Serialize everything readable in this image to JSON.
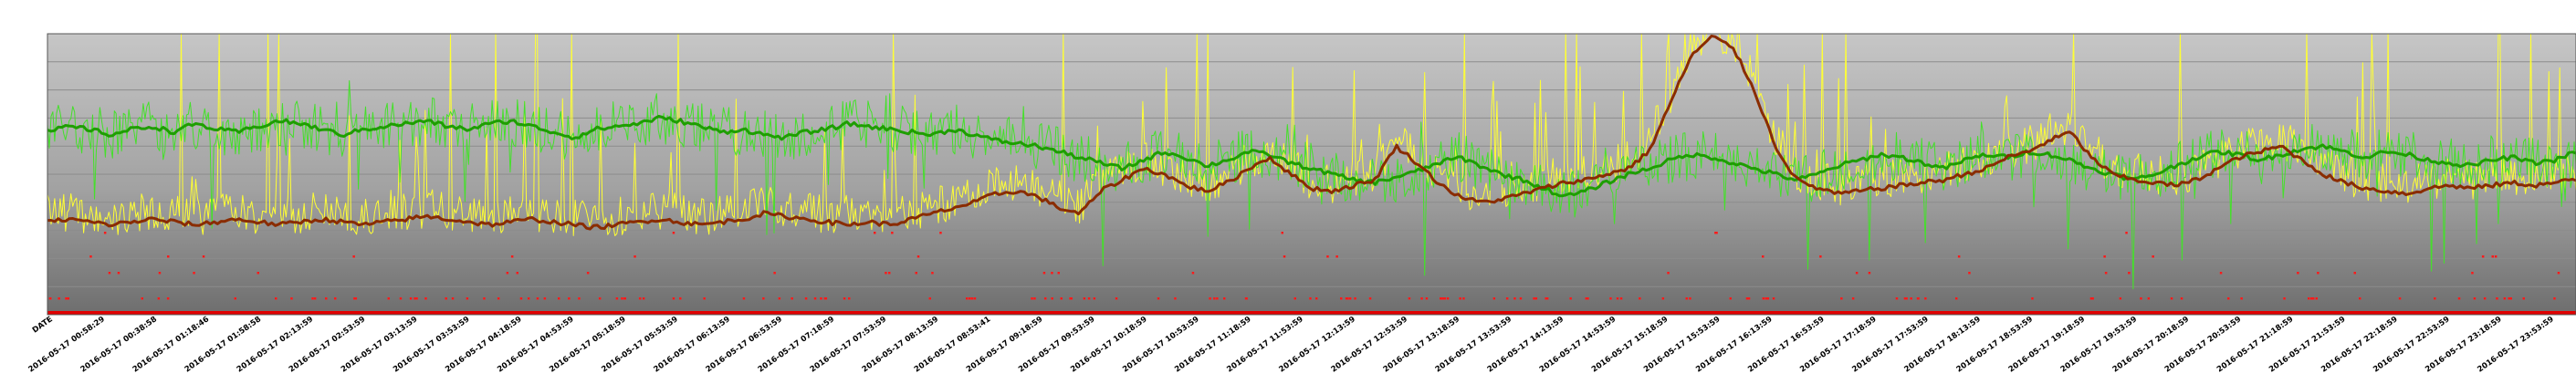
{
  "chart_data": {
    "type": "line",
    "title": "",
    "xlabel": "",
    "ylabel": "",
    "ylim": [
      0,
      100
    ],
    "grid": true,
    "legend": "none",
    "x_first_label": "DATE",
    "x_tick_labels": [
      "2016-05-17 00:58:29",
      "2016-05-17 00:38:58",
      "2016-05-17 01:18:46",
      "2016-05-17 01:58:58",
      "2016-05-17 02:13:59",
      "2016-05-17 02:53:59",
      "2016-05-17 03:13:59",
      "2016-05-17 03:53:59",
      "2016-05-17 04:18:59",
      "2016-05-17 04:53:59",
      "2016-05-17 05:18:59",
      "2016-05-17 05:53:59",
      "2016-05-17 06:13:59",
      "2016-05-17 06:53:59",
      "2016-05-17 07:18:59",
      "2016-05-17 07:53:59",
      "2016-05-17 08:13:59",
      "2016-05-17 08:53:41",
      "2016-05-17 09:18:59",
      "2016-05-17 09:53:59",
      "2016-05-17 10:18:59",
      "2016-05-17 10:53:59",
      "2016-05-17 11:18:59",
      "2016-05-17 11:53:59",
      "2016-05-17 12:13:59",
      "2016-05-17 12:53:59",
      "2016-05-17 13:18:59",
      "2016-05-17 13:53:59",
      "2016-05-17 14:13:59",
      "2016-05-17 14:53:59",
      "2016-05-17 15:18:59",
      "2016-05-17 15:53:59",
      "2016-05-17 16:13:59",
      "2016-05-17 16:53:59",
      "2016-05-17 17:18:59",
      "2016-05-17 17:53:59",
      "2016-05-17 18:13:59",
      "2016-05-17 18:53:59",
      "2016-05-17 19:18:59",
      "2016-05-17 19:53:59",
      "2016-05-17 20:18:59",
      "2016-05-17 20:53:59",
      "2016-05-17 21:18:59",
      "2016-05-17 21:53:59",
      "2016-05-17 22:18:59",
      "2016-05-17 22:53:59",
      "2016-05-17 23:18:59",
      "2016-05-17 23:53:59"
    ],
    "series": [
      {
        "color": "#1e9e00",
        "style": "smoothed line",
        "values": [
          65,
          67,
          66,
          64,
          66,
          67,
          65,
          68,
          66,
          65,
          67,
          69,
          68,
          66,
          64,
          66,
          67,
          68,
          69,
          67,
          66,
          68,
          69,
          67,
          65,
          63,
          66,
          67,
          68,
          70,
          69,
          67,
          65,
          66,
          64,
          63,
          65,
          66,
          68,
          67,
          66,
          65,
          64,
          66,
          64,
          62,
          61,
          60,
          58,
          56,
          54,
          52,
          55,
          58,
          56,
          53,
          55,
          58,
          57,
          54,
          52,
          50,
          48,
          47,
          49,
          51,
          54,
          56,
          53,
          50,
          48,
          45,
          42,
          44,
          47,
          50,
          52,
          55,
          57,
          56,
          54,
          52,
          50,
          48,
          50,
          53,
          55,
          57,
          56,
          54,
          52,
          55,
          57,
          56,
          58,
          57,
          55,
          52,
          50,
          48,
          50,
          53,
          56,
          58,
          57,
          55,
          57,
          59,
          60,
          58,
          56,
          58,
          57,
          55,
          54,
          53,
          55,
          56,
          54,
          55,
          58
        ]
      },
      {
        "color": "#44e02a",
        "style": "noisy line",
        "values": []
      },
      {
        "color": "#ffff33",
        "style": "noisy line",
        "values": []
      },
      {
        "color": "#8a2c00",
        "style": "smoothed line",
        "values": [
          33,
          34,
          33,
          32,
          33,
          34,
          33,
          32,
          33,
          34,
          33,
          32,
          33,
          34,
          33,
          32,
          33,
          34,
          35,
          34,
          33,
          32,
          33,
          34,
          33,
          32,
          31,
          32,
          33,
          34,
          33,
          32,
          33,
          34,
          36,
          35,
          34,
          33,
          32,
          33,
          32,
          34,
          36,
          38,
          40,
          43,
          44,
          42,
          38,
          36,
          44,
          48,
          52,
          50,
          46,
          44,
          47,
          52,
          56,
          50,
          45,
          44,
          46,
          48,
          60,
          54,
          47,
          42,
          40,
          41,
          43,
          45,
          47,
          48,
          50,
          52,
          58,
          75,
          92,
          99,
          95,
          80,
          60,
          48,
          45,
          43,
          44,
          45,
          46,
          47,
          48,
          50,
          52,
          56,
          58,
          62,
          65,
          56,
          50,
          48,
          47,
          46,
          48,
          52,
          56,
          58,
          60,
          55,
          50,
          47,
          45,
          44,
          43,
          45,
          46,
          45,
          46,
          47,
          46,
          47,
          48
        ]
      }
    ]
  }
}
